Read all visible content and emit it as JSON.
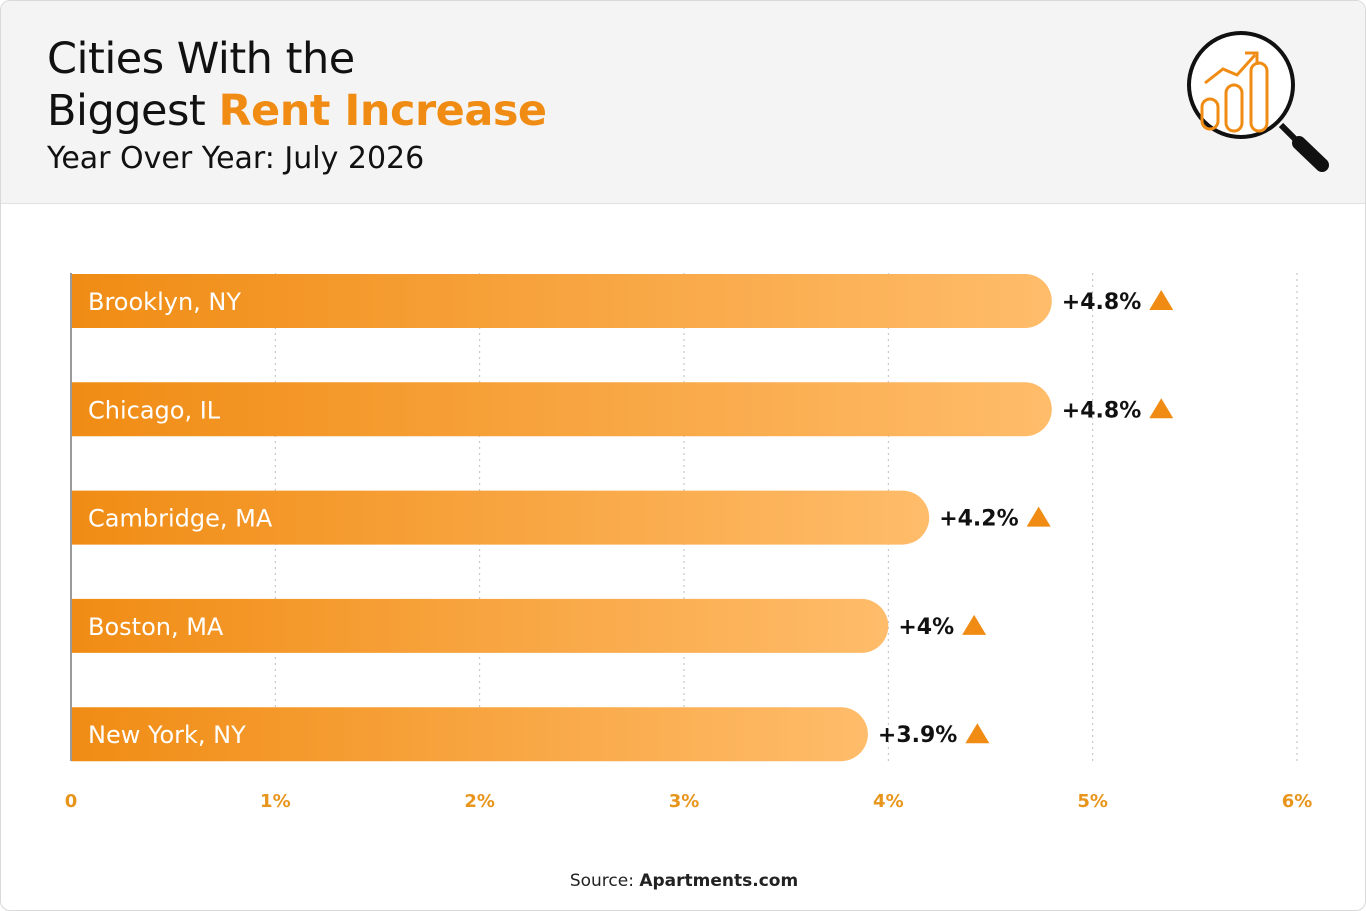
{
  "header": {
    "title_line1": "Cities With the",
    "title_line2_plain": "Biggest ",
    "title_line2_accent": "Rent Increase",
    "subtitle": "Year Over Year: July 2026"
  },
  "source": {
    "prefix": "Source: ",
    "name": "Apartments.com"
  },
  "colors": {
    "accent": "#f08c14",
    "bar_start": "#f08c14",
    "bar_end": "#ffbc6a",
    "grid": "#bdbdbd"
  },
  "icons": {
    "logo": "magnifier-growth-chart-icon",
    "increase": "triangle-up-icon"
  },
  "chart_data": {
    "type": "bar",
    "orientation": "horizontal",
    "categories": [
      "Brooklyn, NY",
      "Chicago, IL",
      "Cambridge, MA",
      "Boston, MA",
      "New York, NY"
    ],
    "values": [
      4.8,
      4.8,
      4.2,
      4.0,
      3.9
    ],
    "value_labels": [
      "+4.8%",
      "+4.8%",
      "+4.2%",
      "+4%",
      "+3.9%"
    ],
    "xlim": [
      0,
      6
    ],
    "xticks": [
      "0",
      "1%",
      "2%",
      "3%",
      "4%",
      "5%",
      "6%"
    ],
    "grid": true
  }
}
